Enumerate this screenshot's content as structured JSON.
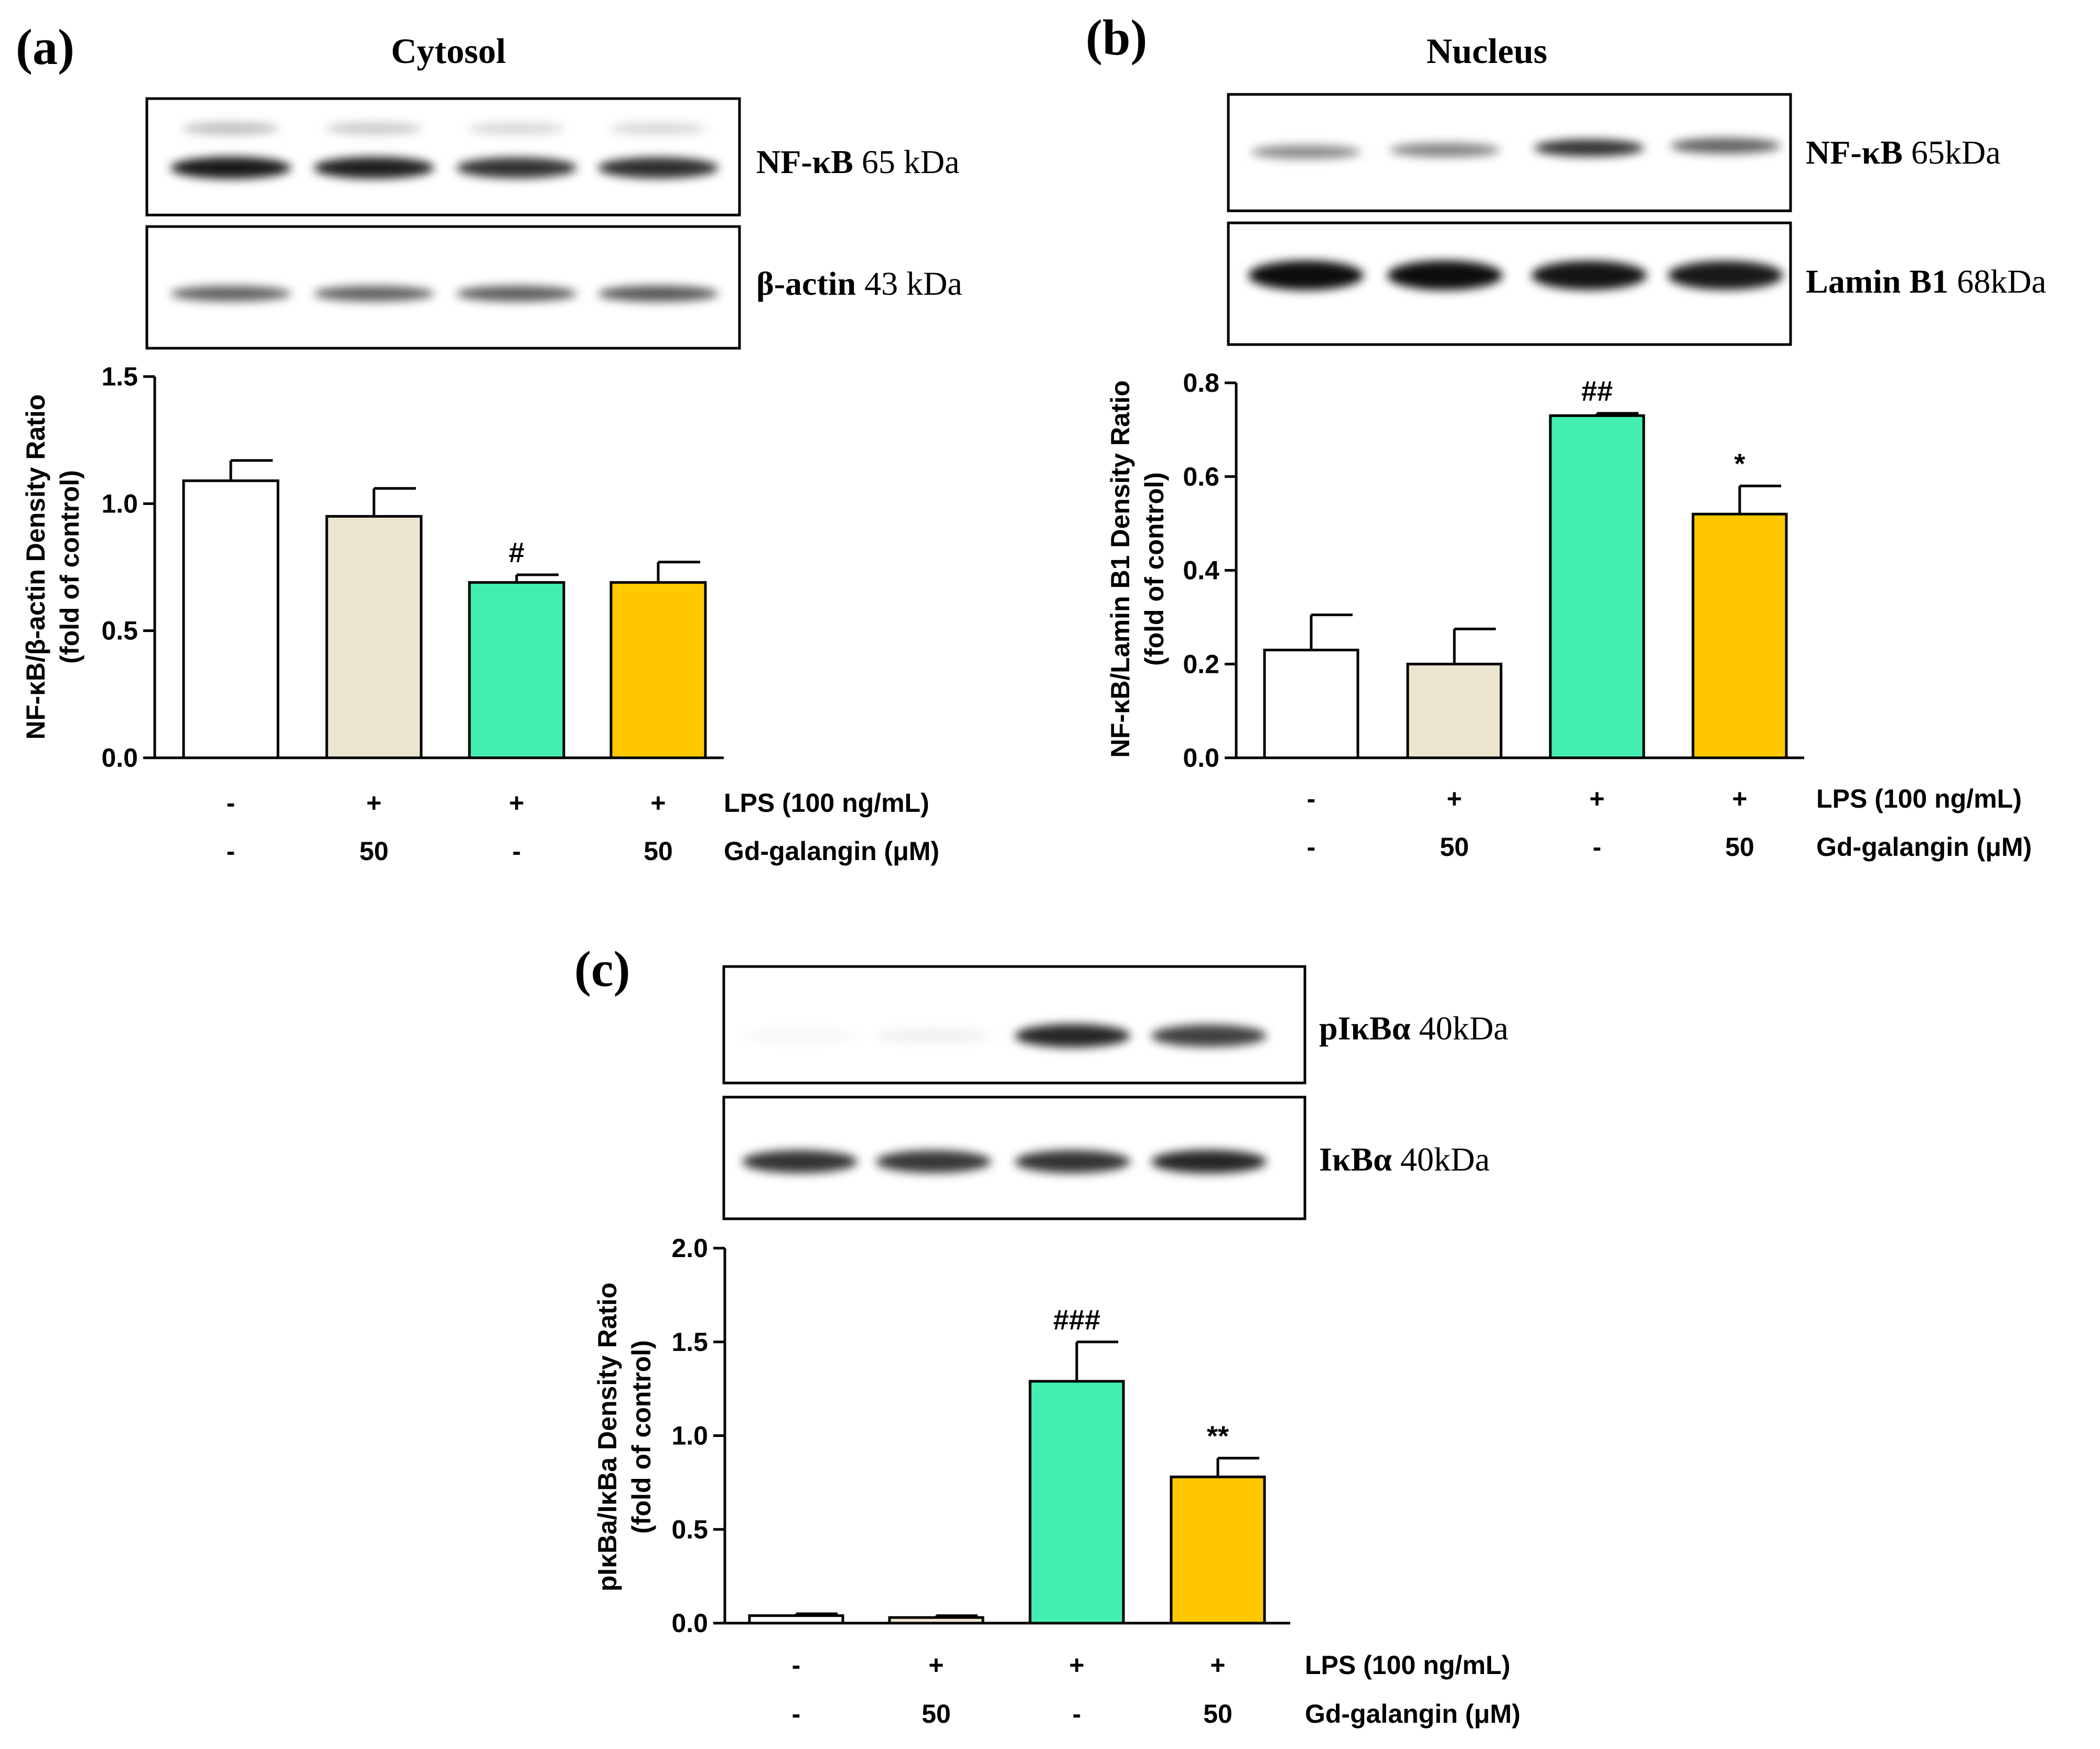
{
  "panels": [
    {
      "id": "a",
      "label": "(a)",
      "title": "Cytosol",
      "blots": [
        {
          "protein": "NF-κB",
          "size": "65 kDa",
          "bands": [
            0.9,
            0.88,
            0.8,
            0.82
          ],
          "upper_bands": [
            0.25,
            0.2,
            0.15,
            0.15
          ],
          "band_tilt": 0
        },
        {
          "protein": "β-actin",
          "size": "43 kDa",
          "bands": [
            0.62,
            0.62,
            0.64,
            0.66
          ],
          "upper_bands": [],
          "band_tilt": 0
        }
      ],
      "chart_data": {
        "type": "bar",
        "categories": [
          "1",
          "2",
          "3",
          "4"
        ],
        "values": [
          1.09,
          0.95,
          0.69,
          0.69
        ],
        "errors": [
          0.08,
          0.11,
          0.03,
          0.08
        ],
        "annotations": [
          "",
          "",
          "#",
          ""
        ],
        "colors": [
          "#ffffff",
          "#ece6d0",
          "#43efb0",
          "#ffc800"
        ],
        "ylabel_line1": "NF-κB/β-actin Density Ratio",
        "ylabel_line2": "(fold of control)",
        "ylim": [
          0,
          1.5
        ],
        "yticks": [
          "0.0",
          "0.5",
          "1.0",
          "1.5"
        ],
        "condition_rows": [
          {
            "label": "LPS (100 ng/mL)",
            "values": [
              "-",
              "+",
              "+",
              "+"
            ]
          },
          {
            "label": "Gd-galangin (μM)",
            "values": [
              "-",
              "50",
              "-",
              "50"
            ]
          }
        ]
      }
    },
    {
      "id": "b",
      "label": "(b)",
      "title": "Nucleus",
      "blots": [
        {
          "protein": "NF-κB",
          "size": "65kDa",
          "bands": [
            0.45,
            0.48,
            0.8,
            0.62
          ],
          "upper_bands": [],
          "band_tilt": 1
        },
        {
          "protein": "Lamin B1",
          "size": "68kDa",
          "bands": [
            0.95,
            0.95,
            0.92,
            0.9
          ],
          "upper_bands": [],
          "band_tilt": 0
        }
      ],
      "chart_data": {
        "type": "bar",
        "categories": [
          "1",
          "2",
          "3",
          "4"
        ],
        "values": [
          0.23,
          0.2,
          0.73,
          0.52
        ],
        "errors": [
          0.075,
          0.075,
          0.005,
          0.06
        ],
        "annotations": [
          "",
          "",
          "##",
          "*"
        ],
        "colors": [
          "#ffffff",
          "#ece6d0",
          "#43efb0",
          "#ffc800"
        ],
        "ylabel_line1": "NF-κB/Lamin B1 Density Ratio",
        "ylabel_line2": "(fold of control)",
        "ylim": [
          0,
          0.8
        ],
        "yticks": [
          "0.0",
          "0.2",
          "0.4",
          "0.6",
          "0.8"
        ],
        "condition_rows": [
          {
            "label": "LPS (100 ng/mL)",
            "values": [
              "-",
              "+",
              "+",
              "+"
            ]
          },
          {
            "label": "Gd-galangin (μM)",
            "values": [
              "-",
              "50",
              "-",
              "50"
            ]
          }
        ]
      }
    },
    {
      "id": "c",
      "label": "(c)",
      "title": "",
      "blots": [
        {
          "protein": "pIκBα",
          "size": "40kDa",
          "bands": [
            0.03,
            0.06,
            0.85,
            0.75
          ],
          "upper_bands": [],
          "band_tilt": 0
        },
        {
          "protein": "IκBα",
          "size": "40kDa",
          "bands": [
            0.8,
            0.78,
            0.8,
            0.85
          ],
          "upper_bands": [],
          "band_tilt": 0
        }
      ],
      "chart_data": {
        "type": "bar",
        "categories": [
          "1",
          "2",
          "3",
          "4"
        ],
        "values": [
          0.04,
          0.03,
          1.29,
          0.78
        ],
        "errors": [
          0.01,
          0.01,
          0.21,
          0.1
        ],
        "annotations": [
          "",
          "",
          "###",
          "**"
        ],
        "colors": [
          "#ffffff",
          "#ece6d0",
          "#43efb0",
          "#ffc800"
        ],
        "ylabel_line1": "pIκBa/IκBa Density Ratio",
        "ylabel_line2": "(fold of control)",
        "ylim": [
          0,
          2.0
        ],
        "yticks": [
          "0.0",
          "0.5",
          "1.0",
          "1.5",
          "2.0"
        ],
        "condition_rows": [
          {
            "label": "LPS (100 ng/mL)",
            "values": [
              "-",
              "+",
              "+",
              "+"
            ]
          },
          {
            "label": "Gd-galangin (μM)",
            "values": [
              "-",
              "50",
              "-",
              "50"
            ]
          }
        ]
      }
    }
  ]
}
